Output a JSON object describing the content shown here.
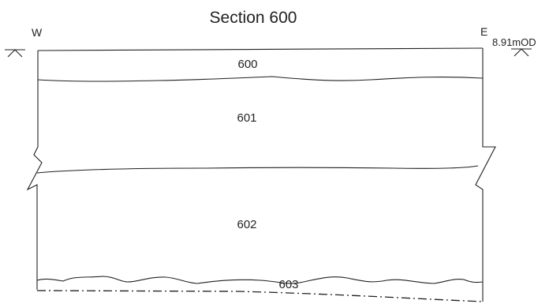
{
  "section": {
    "title": "Section 600",
    "west_label": "W",
    "east_label": "E",
    "datum_level": "8.91mOD"
  },
  "contexts": [
    {
      "id": "600"
    },
    {
      "id": "601"
    },
    {
      "id": "602"
    },
    {
      "id": "603"
    }
  ]
}
